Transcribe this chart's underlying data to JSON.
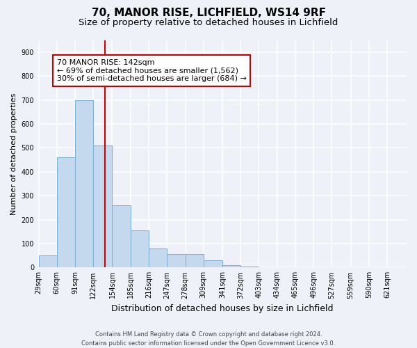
{
  "title1": "70, MANOR RISE, LICHFIELD, WS14 9RF",
  "title2": "Size of property relative to detached houses in Lichfield",
  "xlabel": "Distribution of detached houses by size in Lichfield",
  "ylabel": "Number of detached properties",
  "footnote": "Contains HM Land Registry data © Crown copyright and database right 2024.\nContains public sector information licensed under the Open Government Licence v3.0.",
  "annotation_line1": "70 MANOR RISE: 142sqm",
  "annotation_line2": "← 69% of detached houses are smaller (1,562)",
  "annotation_line3": "30% of semi-detached houses are larger (684) →",
  "bar_color": "#c5d9ee",
  "bar_edge_color": "#7aafd4",
  "vline_color": "#cc0000",
  "vline_x": 142,
  "bin_edges": [
    29,
    60,
    91,
    122,
    154,
    185,
    216,
    247,
    278,
    309,
    341,
    372,
    403,
    434,
    465,
    496,
    527,
    559,
    590,
    621,
    652
  ],
  "bar_heights": [
    50,
    460,
    700,
    510,
    260,
    155,
    80,
    55,
    55,
    30,
    10,
    5,
    0,
    0,
    0,
    0,
    0,
    0,
    0,
    0
  ],
  "ylim": [
    0,
    950
  ],
  "yticks": [
    0,
    100,
    200,
    300,
    400,
    500,
    600,
    700,
    800,
    900
  ],
  "background_color": "#eef2f8",
  "plot_background": "#eef2f8",
  "grid_color": "#ffffff",
  "box_facecolor": "#ffffff",
  "box_edgecolor": "#cc0000",
  "title1_fontsize": 11,
  "title2_fontsize": 9.5,
  "xlabel_fontsize": 9,
  "ylabel_fontsize": 8,
  "annotation_fontsize": 8,
  "tick_fontsize": 7,
  "footnote_fontsize": 6
}
